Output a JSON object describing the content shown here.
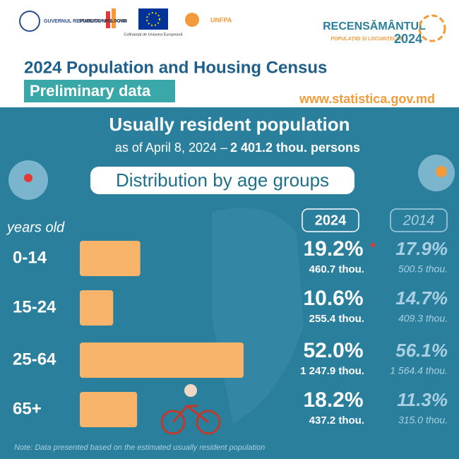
{
  "header": {
    "logo_gov": "GUVERNUL REPUBLICII MOLDOVA",
    "logo_stat": "STATISTICA MOLDOVEI",
    "logo_eu": "Cofinanțat de Uniunea Europeană",
    "logo_unfpa": "UNFPA",
    "census_name": "RECENSĂMÂNTUL",
    "census_sub": "POPULAȚIEI ȘI LOCUINȚELOR",
    "census_year": "2024",
    "title": "2024 Population and Housing Census",
    "subtitle": "Preliminary data",
    "url": "www.statistica.gov.md"
  },
  "chart_data": {
    "type": "bar",
    "orientation": "horizontal",
    "title": "Usually resident population",
    "subtitle": "as of April 8, 2024 –",
    "subtitle_total": "2 401.2 thou. persons",
    "heading": "Distribution by age groups",
    "axis_label": "years old",
    "categories": [
      "0-14",
      "15-24",
      "25-64",
      "65+"
    ],
    "series": [
      {
        "name": "2024",
        "color": "#f9b46b",
        "values": [
          19.2,
          10.6,
          52.0,
          18.2
        ],
        "value_labels": [
          "19.2%",
          "10.6%",
          "52.0%",
          "18.2%"
        ],
        "counts": [
          460.7,
          255.4,
          1247.9,
          437.2
        ],
        "count_labels": [
          "460.7 thou.",
          "255.4 thou.",
          "1 247.9 thou.",
          "437.2 thou."
        ]
      },
      {
        "name": "2014",
        "color": "#a9d0e2",
        "values": [
          17.9,
          14.7,
          56.1,
          11.3
        ],
        "value_labels": [
          "17.9%",
          "14.7%",
          "56.1%",
          "11.3%"
        ],
        "counts": [
          500.5,
          409.3,
          1564.4,
          315.0
        ],
        "count_labels": [
          "500.5 thou.",
          "409.3 thou.",
          "1 564.4 thou.",
          "315.0 thou."
        ]
      }
    ],
    "note": "Note: Data presented based on the estimated usually resident population"
  }
}
